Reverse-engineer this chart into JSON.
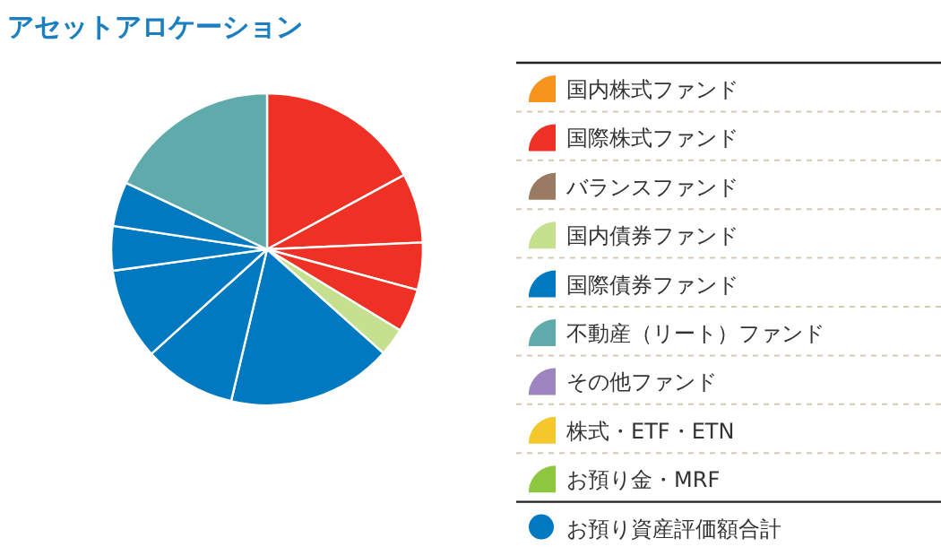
{
  "chart_data": {
    "type": "pie",
    "title": "アセットアロケーション",
    "categories": [
      "国内株式ファンド",
      "国際株式ファンド",
      null,
      null,
      null,
      "バランスファンド",
      "国内債券ファンド",
      "国際債券ファンド",
      null,
      null,
      null,
      null,
      "不動産（リート）ファンド",
      "その他ファンド",
      "株式・ETF・ETN",
      "お預り金・MRF"
    ],
    "values": [
      0,
      17.1,
      7.2,
      4.9,
      4.5,
      0,
      2.9,
      17.1,
      9.6,
      9.5,
      4.6,
      4.6,
      18.0,
      0,
      0,
      0
    ],
    "colors": [
      "#f7941d",
      "#ee3124",
      "#ee3124",
      "#ee3124",
      "#ee3124",
      "#9b7a63",
      "#c5e08e",
      "#0079c1",
      "#0079c1",
      "#0079c1",
      "#0079c1",
      "#0079c1",
      "#5fabab",
      "#9d85c0",
      "#f4c82c",
      "#8dc63f"
    ],
    "legend": "right",
    "annotations": [
      "お預り資産評価額合計"
    ]
  }
}
